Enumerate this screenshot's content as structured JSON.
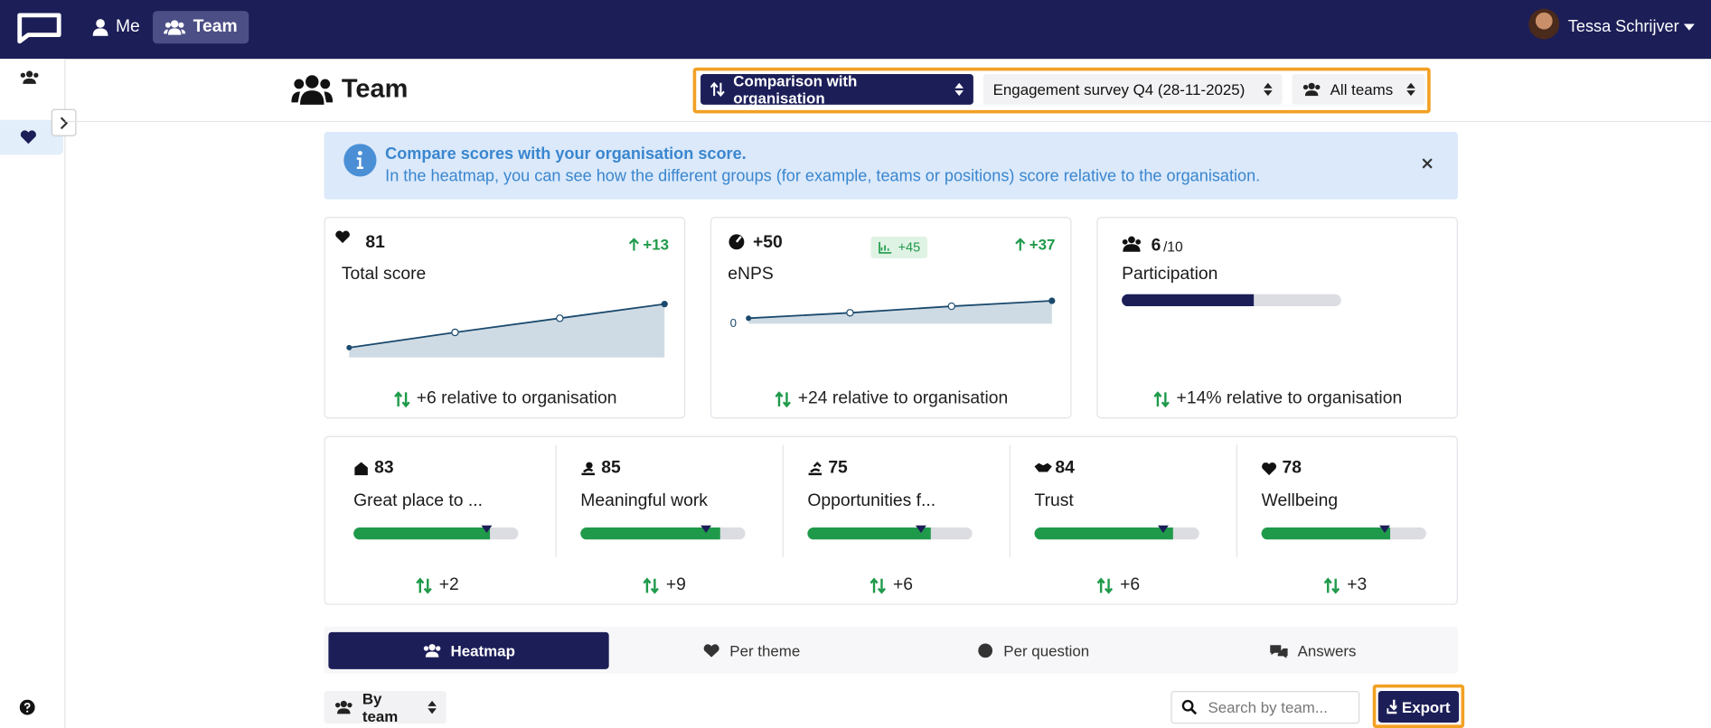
{
  "nav": {
    "me": "Me",
    "team": "Team",
    "user": "Tessa Schrijver"
  },
  "header": {
    "title": "Team",
    "compare_select": "Comparison with organisation",
    "survey_select": "Engagement survey Q4 (28-11-2025)",
    "team_select": "All teams"
  },
  "banner": {
    "title": "Compare scores with your organisation score.",
    "text": "In the heatmap, you can see how the different groups (for example, teams or positions) score relative to the organisation."
  },
  "total_score": {
    "score": 81,
    "change": "+13",
    "label": "Total score",
    "relative": "+6 relative to organisation"
  },
  "enps": {
    "score": "+50",
    "badge": "+45",
    "change": "+37",
    "label": "eNPS",
    "axis_label": 0,
    "relative": "+24 relative to organisation"
  },
  "participation": {
    "value": 6,
    "max": 10,
    "max_label": "/10",
    "label": "Participation",
    "relative": "+14% relative to organisation"
  },
  "theme_bar_range": [
    0,
    100
  ],
  "themes": [
    {
      "score": 83,
      "label": "Great place to ...",
      "diff": 2,
      "diff_label": "+2"
    },
    {
      "score": 85,
      "label": "Meaningful work",
      "diff": 9,
      "diff_label": "+9"
    },
    {
      "score": 75,
      "label": "Opportunities f...",
      "diff": 6,
      "diff_label": "+6"
    },
    {
      "score": 84,
      "label": "Trust",
      "diff": 6,
      "diff_label": "+6"
    },
    {
      "score": 78,
      "label": "Wellbeing",
      "diff": 3,
      "diff_label": "+3"
    }
  ],
  "tabs": [
    "Heatmap",
    "Per theme",
    "Per question",
    "Answers"
  ],
  "toolbar": {
    "group_select": "By team",
    "search_placeholder": "Search by team...",
    "export": "Export"
  }
}
